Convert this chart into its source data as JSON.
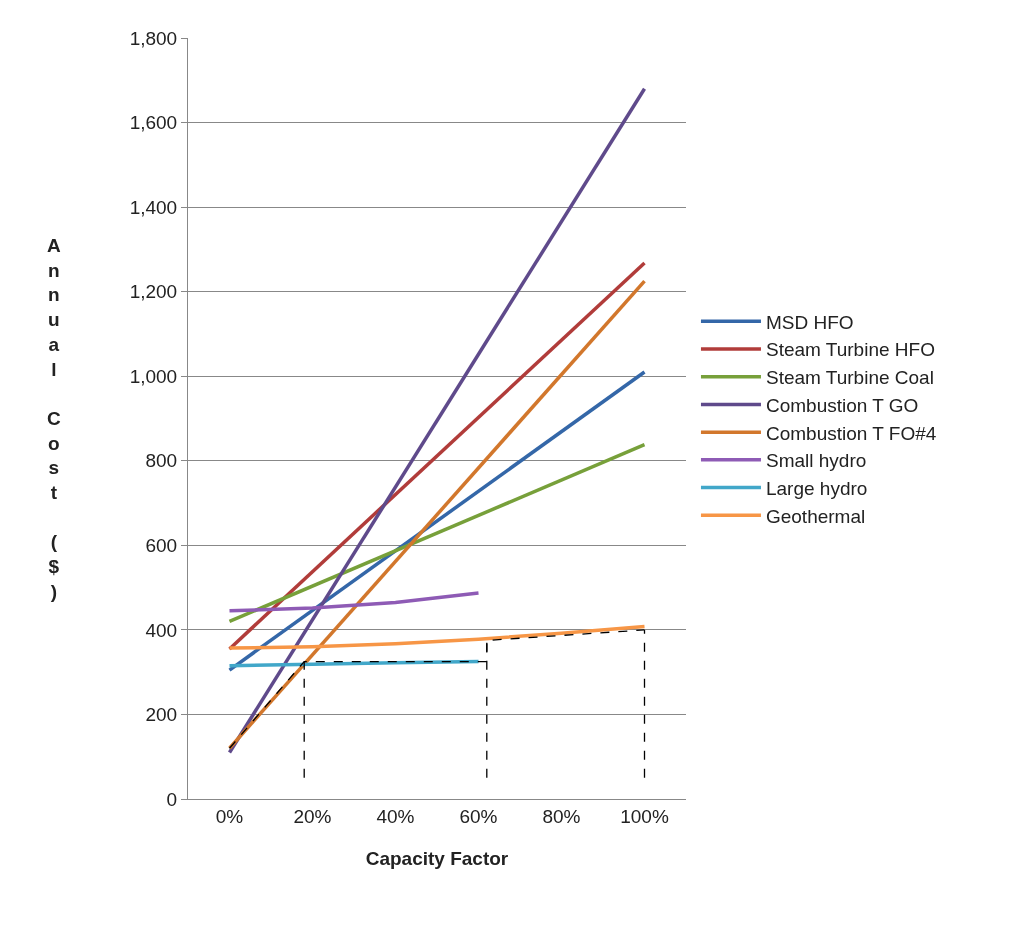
{
  "chart_data": {
    "type": "line",
    "xlabel": "Capacity Factor",
    "ylabel": "Annual Cost ($)",
    "xlim": [
      -10,
      110
    ],
    "xticks": [
      {
        "value": 0,
        "label": "0%"
      },
      {
        "value": 20,
        "label": "20%"
      },
      {
        "value": 40,
        "label": "40%"
      },
      {
        "value": 60,
        "label": "60%"
      },
      {
        "value": 80,
        "label": "80%"
      },
      {
        "value": 100,
        "label": "100%"
      }
    ],
    "ylim": [
      0,
      1800
    ],
    "yticks": [
      0,
      200,
      400,
      600,
      800,
      {
        "value": 1000,
        "label": "1,000"
      },
      {
        "value": 1200,
        "label": "1,200"
      },
      {
        "value": 1400,
        "label": "1,400"
      },
      {
        "value": 1600,
        "label": "1,600"
      },
      {
        "value": 1800,
        "label": "1,800"
      }
    ],
    "grid": "y",
    "legend": "right",
    "marker": "none",
    "line_style": "solid",
    "series": [
      {
        "name": "MSD HFO",
        "color": "#3467a8",
        "x": [
          0,
          100
        ],
        "values": [
          305,
          1010
        ]
      },
      {
        "name": "Steam Turbine HFO",
        "color": "#b13c3a",
        "x": [
          0,
          100
        ],
        "values": [
          355,
          1268
        ]
      },
      {
        "name": "Steam Turbine Coal",
        "color": "#77a03a",
        "x": [
          0,
          100
        ],
        "values": [
          420,
          838
        ]
      },
      {
        "name": "Combustion T GO",
        "color": "#5f4a8b",
        "x": [
          0,
          100
        ],
        "values": [
          110,
          1680
        ]
      },
      {
        "name": "Combustion T FO#4",
        "color": "#d2772c",
        "x": [
          0,
          100
        ],
        "values": [
          120,
          1225
        ]
      },
      {
        "name": "Small hydro",
        "color": "#8e5bb5",
        "x": [
          0,
          20,
          40,
          60
        ],
        "values": [
          445,
          452,
          465,
          487
        ]
      },
      {
        "name": "Large hydro",
        "color": "#41a7c9",
        "x": [
          0,
          20,
          40,
          60
        ],
        "values": [
          315,
          319,
          322,
          325
        ]
      },
      {
        "name": "Geothermal",
        "color": "#f79646",
        "x": [
          0,
          20,
          40,
          60,
          80,
          100
        ],
        "values": [
          357,
          360,
          367,
          378,
          392,
          408
        ]
      },
      {
        "color": "#000000",
        "line_style": "dashed",
        "x": [
          0,
          18,
          62,
          62,
          100
        ],
        "values": [
          120,
          325,
          325,
          375,
          400
        ]
      },
      {
        "color": "#000000",
        "line_style": "dashed",
        "x": [
          18,
          18,
          null,
          62,
          62,
          null,
          100,
          100
        ],
        "values": [
          50,
          325,
          null,
          50,
          375,
          null,
          50,
          400
        ]
      }
    ]
  }
}
